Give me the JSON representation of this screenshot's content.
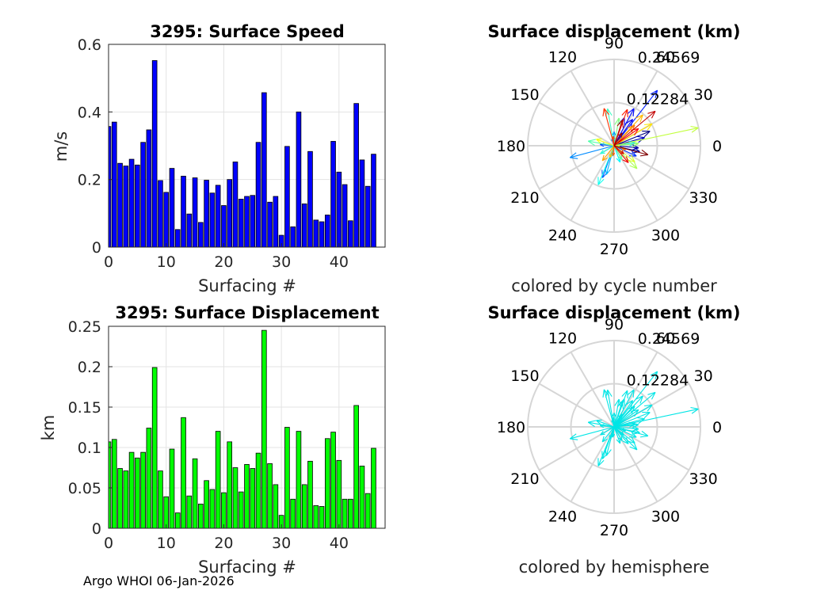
{
  "footer": "Argo WHOI 06-Jan-2026",
  "chart_data": [
    {
      "type": "bar",
      "title": "3295: Surface Speed",
      "xlabel": "Surfacing #",
      "ylabel": "m/s",
      "xlim": [
        0,
        48
      ],
      "ylim": [
        0,
        0.6
      ],
      "xticks": [
        0,
        10,
        20,
        30,
        40
      ],
      "yticks": [
        0,
        0.2,
        0.4,
        0.6
      ],
      "color": "#0000ff",
      "x": [
        0,
        1,
        2,
        3,
        4,
        5,
        6,
        7,
        8,
        9,
        10,
        11,
        12,
        13,
        14,
        15,
        16,
        17,
        18,
        19,
        20,
        21,
        22,
        23,
        24,
        25,
        26,
        27,
        28,
        29,
        30,
        31,
        32,
        33,
        34,
        35,
        36,
        37,
        38,
        39,
        40,
        41,
        42,
        43,
        44,
        45,
        46
      ],
      "values": [
        0.357,
        0.37,
        0.248,
        0.24,
        0.26,
        0.243,
        0.31,
        0.347,
        0.552,
        0.197,
        0.162,
        0.233,
        0.052,
        0.21,
        0.098,
        0.205,
        0.073,
        0.198,
        0.16,
        0.183,
        0.123,
        0.2,
        0.252,
        0.142,
        0.15,
        0.153,
        0.31,
        0.457,
        0.133,
        0.15,
        0.035,
        0.298,
        0.06,
        0.4,
        0.128,
        0.283,
        0.08,
        0.075,
        0.095,
        0.313,
        0.222,
        0.185,
        0.078,
        0.425,
        0.258,
        0.18,
        0.275
      ]
    },
    {
      "type": "polar",
      "title": "Surface displacement (km)",
      "subtitle": "colored by cycle number",
      "rmax": 0.24569,
      "rticks": [
        "0.12284",
        "0.24569"
      ],
      "angle_labels": [
        "0",
        "30",
        "60",
        "90",
        "120",
        "150",
        "180",
        "210",
        "240",
        "270",
        "300",
        "330"
      ],
      "vectors_deg_km": [
        [
          22,
          0.11
        ],
        [
          -13,
          0.075
        ],
        [
          -5,
          0.07
        ],
        [
          15,
          0.09
        ],
        [
          70,
          0.085
        ],
        [
          55,
          0.092
        ],
        [
          62,
          0.12
        ],
        [
          52,
          0.2
        ],
        [
          -25,
          0.07
        ],
        [
          175,
          0.04
        ],
        [
          -110,
          0.097
        ],
        [
          108,
          0.02
        ],
        [
          195,
          0.13
        ],
        [
          90,
          0.04
        ],
        [
          -105,
          0.085
        ],
        [
          -98,
          0.03
        ],
        [
          8,
          0.06
        ],
        [
          -70,
          0.05
        ],
        [
          -112,
          0.12
        ],
        [
          210,
          0.045
        ],
        [
          100,
          0.107
        ],
        [
          170,
          0.075
        ],
        [
          -60,
          0.045
        ],
        [
          80,
          0.08
        ],
        [
          5,
          0.07
        ],
        [
          -45,
          0.092
        ],
        [
          12,
          0.245
        ],
        [
          -38,
          0.075
        ],
        [
          160,
          0.054
        ],
        [
          -8,
          0.016
        ],
        [
          30,
          0.125
        ],
        [
          250,
          0.036
        ],
        [
          47,
          0.12
        ],
        [
          -128,
          0.054
        ],
        [
          -18,
          0.035
        ],
        [
          45,
          0.083
        ],
        [
          -95,
          0.028
        ],
        [
          96,
          0.027
        ],
        [
          105,
          0.11
        ],
        [
          70,
          0.11
        ],
        [
          35,
          0.085
        ],
        [
          -50,
          0.063
        ],
        [
          -40,
          0.036
        ],
        [
          40,
          0.153
        ],
        [
          72,
          0.077
        ],
        [
          58,
          0.043
        ],
        [
          -15,
          0.1
        ]
      ]
    },
    {
      "type": "bar",
      "title": "3295: Surface Displacement",
      "xlabel": "Surfacing #",
      "ylabel": "km",
      "xlim": [
        0,
        48
      ],
      "ylim": [
        0,
        0.25
      ],
      "xticks": [
        0,
        10,
        20,
        30,
        40
      ],
      "yticks": [
        0,
        0.05,
        0.1,
        0.15,
        0.2,
        0.25
      ],
      "color": "#00ff00",
      "x": [
        0,
        1,
        2,
        3,
        4,
        5,
        6,
        7,
        8,
        9,
        10,
        11,
        12,
        13,
        14,
        15,
        16,
        17,
        18,
        19,
        20,
        21,
        22,
        23,
        24,
        25,
        26,
        27,
        28,
        29,
        30,
        31,
        32,
        33,
        34,
        35,
        36,
        37,
        38,
        39,
        40,
        41,
        42,
        43,
        44,
        45,
        46
      ],
      "values": [
        0.107,
        0.11,
        0.074,
        0.071,
        0.094,
        0.087,
        0.094,
        0.124,
        0.199,
        0.071,
        0.039,
        0.098,
        0.019,
        0.137,
        0.04,
        0.086,
        0.03,
        0.059,
        0.048,
        0.12,
        0.044,
        0.107,
        0.075,
        0.045,
        0.079,
        0.074,
        0.093,
        0.245,
        0.08,
        0.054,
        0.016,
        0.125,
        0.036,
        0.12,
        0.054,
        0.083,
        0.028,
        0.027,
        0.111,
        0.119,
        0.084,
        0.036,
        0.036,
        0.152,
        0.077,
        0.043,
        0.099
      ]
    },
    {
      "type": "polar",
      "title": "Surface displacement (km)",
      "subtitle": "colored by hemisphere",
      "rmax": 0.24569,
      "rticks": [
        "0.12284",
        "0.24569"
      ],
      "angle_labels": [
        "0",
        "30",
        "60",
        "90",
        "120",
        "150",
        "180",
        "210",
        "240",
        "270",
        "300",
        "330"
      ],
      "color": "#00e5e5"
    }
  ]
}
